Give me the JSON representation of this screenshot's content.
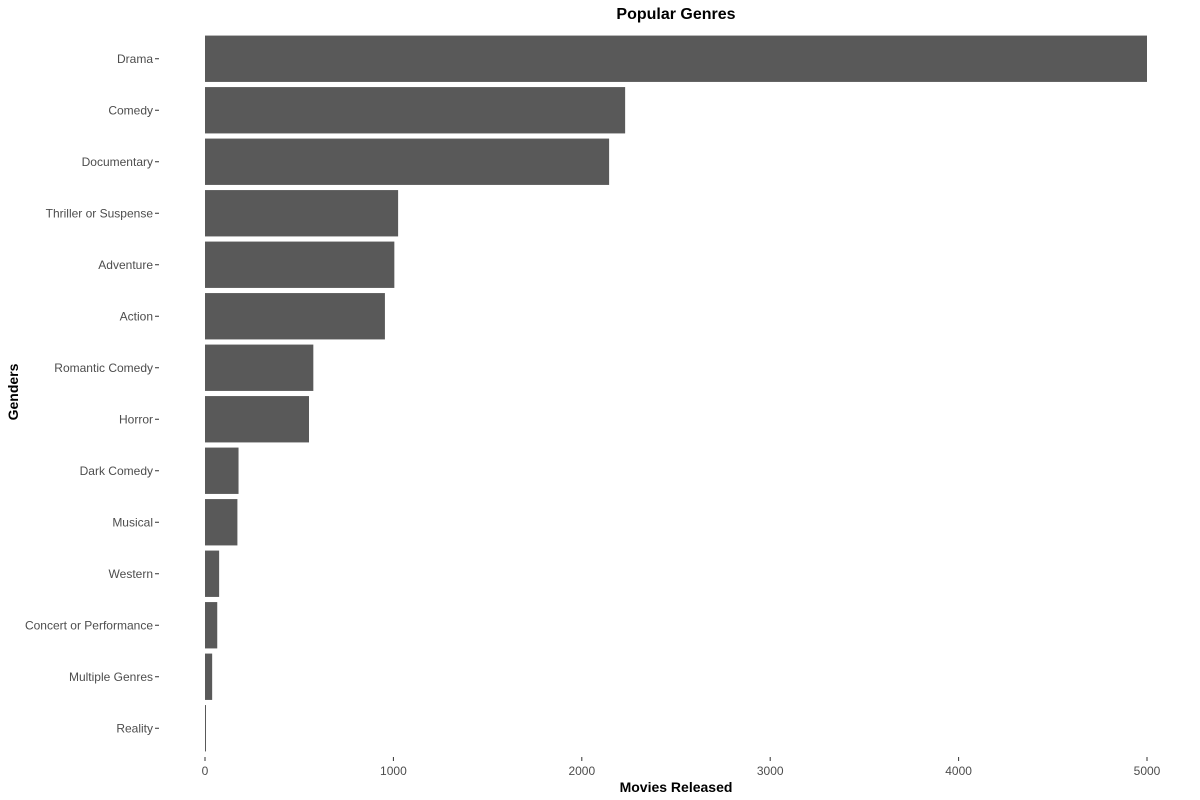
{
  "chart_data": {
    "type": "bar",
    "orientation": "horizontal",
    "title": "Popular Genres",
    "xlabel": "Movies Released",
    "ylabel": "Genders",
    "categories": [
      "Drama",
      "Comedy",
      "Documentary",
      "Thriller or Suspense",
      "Adventure",
      "Action",
      "Romantic Comedy",
      "Horror",
      "Dark Comedy",
      "Musical",
      "Western",
      "Concert or Performance",
      "Multiple Genres",
      "Reality"
    ],
    "values": [
      5000,
      2230,
      2145,
      1025,
      1005,
      955,
      575,
      552,
      178,
      172,
      75,
      65,
      38,
      5
    ],
    "xlim": [
      0,
      5000
    ],
    "xticks": [
      "0",
      "1000",
      "2000",
      "3000",
      "4000",
      "5000"
    ],
    "grid": false,
    "legend": "none",
    "bar_color": "#595959"
  }
}
